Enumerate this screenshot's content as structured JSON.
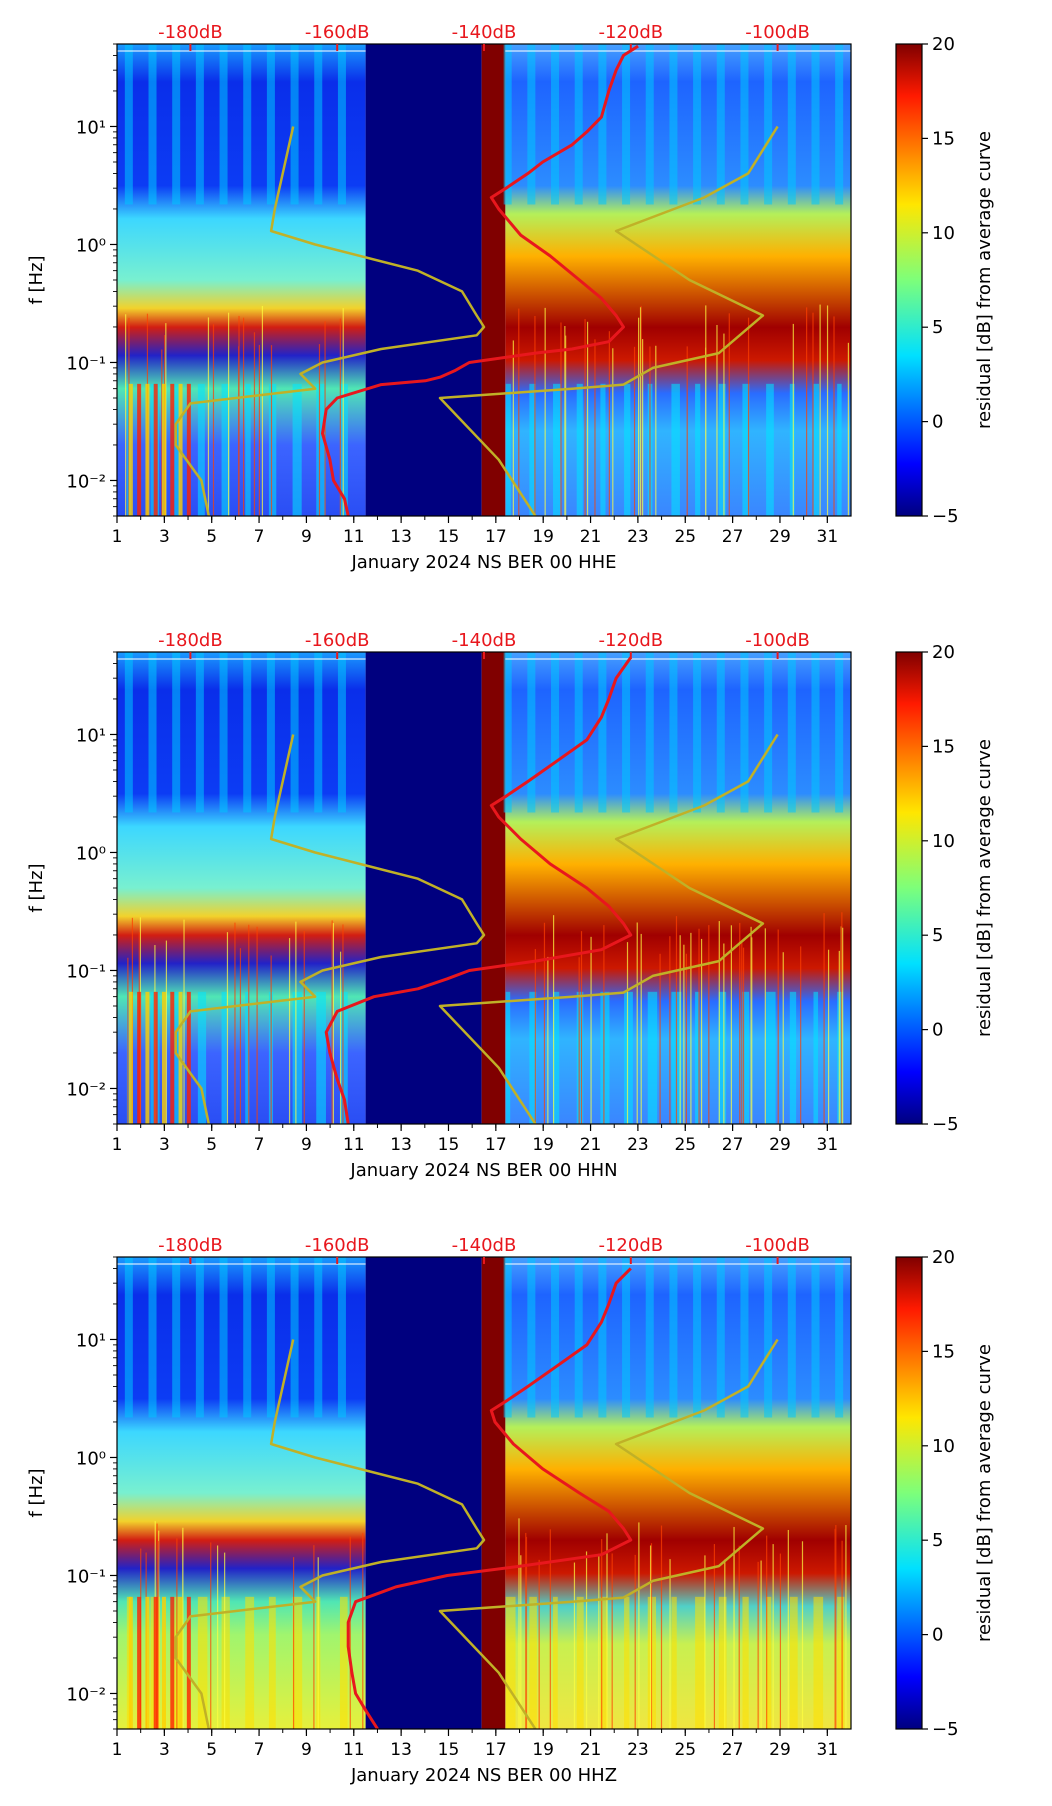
{
  "colors": {
    "noise_curve": "#e8171d",
    "model_curve": "#c0b127",
    "top_axis_text": "#e8171d",
    "gap_fill": "#00007f",
    "outage_fill": "#800000"
  },
  "colormap": "jet",
  "chart_data": [
    {
      "type": "heatmap",
      "xlabel": "January 2024 NS BER 00 HHE",
      "ylabel": "f [Hz]",
      "xticks": [
        "1",
        "3",
        "5",
        "7",
        "9",
        "11",
        "13",
        "15",
        "17",
        "19",
        "21",
        "23",
        "25",
        "27",
        "29",
        "31"
      ],
      "xlim": [
        1,
        32
      ],
      "ylim": [
        0.005,
        50
      ],
      "yscale": "log",
      "yticks": [
        "10⁻²",
        "10⁻¹",
        "10⁰",
        "10¹"
      ],
      "top_axis_ticks": [
        "-180dB",
        "-160dB",
        "-140dB",
        "-120dB",
        "-100dB"
      ],
      "colorbar": {
        "label": "residual [dB] from average curve",
        "min": -5,
        "max": 20,
        "ticks": [
          "−5",
          "0",
          "5",
          "10",
          "15",
          "20"
        ]
      },
      "data_gap_days": [
        11.5,
        16.4
      ],
      "outage_days": [
        16.4,
        17.4
      ],
      "series": [
        {
          "name": "noise-psd",
          "points": [
            [
              0.005,
              -158.5
            ],
            [
              0.007,
              -159
            ],
            [
              0.01,
              -160.5
            ],
            [
              0.015,
              -161
            ],
            [
              0.025,
              -162
            ],
            [
              0.04,
              -161.5
            ],
            [
              0.05,
              -160
            ],
            [
              0.065,
              -154
            ],
            [
              0.07,
              -148
            ],
            [
              0.075,
              -146
            ],
            [
              0.085,
              -144
            ],
            [
              0.1,
              -142
            ],
            [
              0.12,
              -133
            ],
            [
              0.13,
              -128
            ],
            [
              0.15,
              -123
            ],
            [
              0.2,
              -121
            ],
            [
              0.25,
              -122
            ],
            [
              0.35,
              -124
            ],
            [
              0.5,
              -127
            ],
            [
              0.8,
              -131
            ],
            [
              1.2,
              -135
            ],
            [
              2,
              -138
            ],
            [
              2.5,
              -139
            ],
            [
              3,
              -137
            ],
            [
              4,
              -134
            ],
            [
              5,
              -132
            ],
            [
              7,
              -128
            ],
            [
              9,
              -126
            ],
            [
              12,
              -124
            ],
            [
              20,
              -123
            ],
            [
              30,
              -122
            ],
            [
              40,
              -121
            ],
            [
              48,
              -119
            ]
          ]
        },
        {
          "name": "model-curve-low",
          "points": [
            [
              0.005,
              -177.5
            ],
            [
              0.01,
              -178.5
            ],
            [
              0.02,
              -182
            ],
            [
              0.03,
              -182
            ],
            [
              0.045,
              -180
            ],
            [
              0.06,
              -163
            ],
            [
              0.08,
              -165
            ],
            [
              0.1,
              -162
            ],
            [
              0.13,
              -154
            ],
            [
              0.17,
              -141
            ],
            [
              0.2,
              -140
            ],
            [
              0.25,
              -141
            ],
            [
              0.4,
              -143
            ],
            [
              0.6,
              -149
            ],
            [
              1,
              -163
            ],
            [
              1.3,
              -169
            ],
            [
              2,
              -168.5
            ],
            [
              10,
              -166
            ]
          ]
        },
        {
          "name": "model-curve-high",
          "points": [
            [
              0.005,
              -133
            ],
            [
              0.015,
              -138
            ],
            [
              0.05,
              -146
            ],
            [
              0.06,
              -128
            ],
            [
              0.065,
              -121
            ],
            [
              0.09,
              -117
            ],
            [
              0.12,
              -108
            ],
            [
              0.25,
              -102
            ],
            [
              0.5,
              -112
            ],
            [
              1.3,
              -122
            ],
            [
              2.5,
              -110
            ],
            [
              4,
              -104
            ],
            [
              10,
              -100
            ]
          ]
        }
      ]
    },
    {
      "type": "heatmap",
      "xlabel": "January 2024 NS BER 00 HHN",
      "ylabel": "f [Hz]",
      "xticks": [
        "1",
        "3",
        "5",
        "7",
        "9",
        "11",
        "13",
        "15",
        "17",
        "19",
        "21",
        "23",
        "25",
        "27",
        "29",
        "31"
      ],
      "xlim": [
        1,
        32
      ],
      "ylim": [
        0.005,
        50
      ],
      "yscale": "log",
      "yticks": [
        "10⁻²",
        "10⁻¹",
        "10⁰",
        "10¹"
      ],
      "top_axis_ticks": [
        "-180dB",
        "-160dB",
        "-140dB",
        "-120dB",
        "-100dB"
      ],
      "colorbar": {
        "label": "residual [dB] from average curve",
        "min": -5,
        "max": 20,
        "ticks": [
          "−5",
          "0",
          "5",
          "10",
          "15",
          "20"
        ]
      },
      "data_gap_days": [
        11.5,
        16.4
      ],
      "outage_days": [
        16.4,
        17.4
      ],
      "series": [
        {
          "name": "noise-psd",
          "points": [
            [
              0.005,
              -158.5
            ],
            [
              0.008,
              -159
            ],
            [
              0.012,
              -160
            ],
            [
              0.02,
              -161
            ],
            [
              0.03,
              -161.5
            ],
            [
              0.045,
              -160
            ],
            [
              0.06,
              -155
            ],
            [
              0.07,
              -149
            ],
            [
              0.085,
              -145
            ],
            [
              0.1,
              -142
            ],
            [
              0.12,
              -133
            ],
            [
              0.15,
              -124
            ],
            [
              0.2,
              -120
            ],
            [
              0.25,
              -121
            ],
            [
              0.35,
              -123
            ],
            [
              0.5,
              -126
            ],
            [
              0.8,
              -131
            ],
            [
              1.3,
              -135
            ],
            [
              2,
              -138
            ],
            [
              2.5,
              -139
            ],
            [
              3,
              -137
            ],
            [
              4,
              -134
            ],
            [
              6,
              -130
            ],
            [
              9,
              -126
            ],
            [
              14,
              -124
            ],
            [
              20,
              -123
            ],
            [
              30,
              -122
            ],
            [
              45,
              -120
            ]
          ]
        },
        {
          "name": "model-curve-low",
          "points": [
            [
              0.005,
              -177.5
            ],
            [
              0.01,
              -178.5
            ],
            [
              0.02,
              -182
            ],
            [
              0.03,
              -182
            ],
            [
              0.045,
              -180
            ],
            [
              0.06,
              -163
            ],
            [
              0.08,
              -165
            ],
            [
              0.1,
              -162
            ],
            [
              0.13,
              -154
            ],
            [
              0.17,
              -141
            ],
            [
              0.2,
              -140
            ],
            [
              0.25,
              -141
            ],
            [
              0.4,
              -143
            ],
            [
              0.6,
              -149
            ],
            [
              1,
              -163
            ],
            [
              1.3,
              -169
            ],
            [
              2,
              -168.5
            ],
            [
              10,
              -166
            ]
          ]
        },
        {
          "name": "model-curve-high",
          "points": [
            [
              0.005,
              -133
            ],
            [
              0.015,
              -138
            ],
            [
              0.05,
              -146
            ],
            [
              0.06,
              -128
            ],
            [
              0.065,
              -121
            ],
            [
              0.09,
              -117
            ],
            [
              0.12,
              -108
            ],
            [
              0.25,
              -102
            ],
            [
              0.5,
              -112
            ],
            [
              1.3,
              -122
            ],
            [
              2.5,
              -110
            ],
            [
              4,
              -104
            ],
            [
              10,
              -100
            ]
          ]
        }
      ]
    },
    {
      "type": "heatmap",
      "xlabel": "January 2024 NS BER 00 HHZ",
      "ylabel": "f [Hz]",
      "xticks": [
        "1",
        "3",
        "5",
        "7",
        "9",
        "11",
        "13",
        "15",
        "17",
        "19",
        "21",
        "23",
        "25",
        "27",
        "29",
        "31"
      ],
      "xlim": [
        1,
        32
      ],
      "ylim": [
        0.005,
        50
      ],
      "yscale": "log",
      "yticks": [
        "10⁻²",
        "10⁻¹",
        "10⁰",
        "10¹"
      ],
      "top_axis_ticks": [
        "-180dB",
        "-160dB",
        "-140dB",
        "-120dB",
        "-100dB"
      ],
      "colorbar": {
        "label": "residual [dB] from average curve",
        "min": -5,
        "max": 20,
        "ticks": [
          "−5",
          "0",
          "5",
          "10",
          "15",
          "20"
        ]
      },
      "data_gap_days": [
        11.5,
        16.4
      ],
      "outage_days": [
        16.4,
        17.4
      ],
      "series": [
        {
          "name": "noise-psd",
          "points": [
            [
              0.005,
              -154.5
            ],
            [
              0.007,
              -156
            ],
            [
              0.01,
              -157.5
            ],
            [
              0.015,
              -158
            ],
            [
              0.025,
              -158.5
            ],
            [
              0.04,
              -158.5
            ],
            [
              0.06,
              -157.5
            ],
            [
              0.08,
              -152
            ],
            [
              0.1,
              -145
            ],
            [
              0.12,
              -135
            ],
            [
              0.15,
              -124
            ],
            [
              0.2,
              -120
            ],
            [
              0.25,
              -121
            ],
            [
              0.35,
              -123
            ],
            [
              0.5,
              -127
            ],
            [
              0.8,
              -132
            ],
            [
              1.3,
              -136
            ],
            [
              2,
              -138.5
            ],
            [
              2.5,
              -139
            ],
            [
              3,
              -137
            ],
            [
              4,
              -134
            ],
            [
              6,
              -130
            ],
            [
              9,
              -126
            ],
            [
              14,
              -124
            ],
            [
              20,
              -123
            ],
            [
              30,
              -122
            ],
            [
              40,
              -120
            ]
          ]
        },
        {
          "name": "model-curve-low",
          "points": [
            [
              0.005,
              -177.5
            ],
            [
              0.01,
              -178.5
            ],
            [
              0.02,
              -182
            ],
            [
              0.03,
              -182
            ],
            [
              0.045,
              -180
            ],
            [
              0.06,
              -163
            ],
            [
              0.08,
              -165
            ],
            [
              0.1,
              -162
            ],
            [
              0.13,
              -154
            ],
            [
              0.17,
              -141
            ],
            [
              0.2,
              -140
            ],
            [
              0.25,
              -141
            ],
            [
              0.4,
              -143
            ],
            [
              0.6,
              -149
            ],
            [
              1,
              -163
            ],
            [
              1.3,
              -169
            ],
            [
              2,
              -168.5
            ],
            [
              10,
              -166
            ]
          ]
        },
        {
          "name": "model-curve-high",
          "points": [
            [
              0.005,
              -133
            ],
            [
              0.015,
              -138
            ],
            [
              0.05,
              -146
            ],
            [
              0.06,
              -128
            ],
            [
              0.065,
              -121
            ],
            [
              0.09,
              -117
            ],
            [
              0.12,
              -108
            ],
            [
              0.25,
              -102
            ],
            [
              0.5,
              -112
            ],
            [
              1.3,
              -122
            ],
            [
              2.5,
              -110
            ],
            [
              4,
              -104
            ],
            [
              10,
              -100
            ]
          ]
        }
      ]
    }
  ]
}
